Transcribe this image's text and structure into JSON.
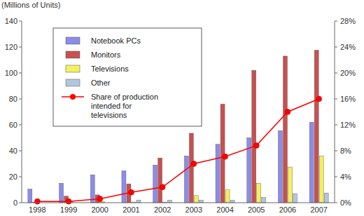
{
  "chart_data": {
    "type": "bar",
    "y_label": "(Millions of Units)",
    "categories": [
      "1998",
      "1999",
      "2000",
      "2001",
      "2002",
      "2003",
      "2004",
      "2005",
      "2006",
      "2007"
    ],
    "series": [
      {
        "name": "Notebook PCs",
        "type": "bar",
        "color": "#8c8ce8",
        "values": [
          10.5,
          15,
          21.5,
          24.5,
          29,
          36,
          45,
          50,
          55.5,
          62
        ]
      },
      {
        "name": "Monitors",
        "type": "bar",
        "color": "#c85050",
        "values": [
          0.5,
          5,
          6,
          14.5,
          34.5,
          53.5,
          76,
          102,
          113,
          117.5
        ]
      },
      {
        "name": "Televisions",
        "type": "bar",
        "color": "#f2f060",
        "values": [
          0,
          1,
          1,
          0.5,
          0.5,
          5.5,
          10,
          15,
          27.5,
          36
        ]
      },
      {
        "name": "Other",
        "type": "bar",
        "color": "#b4c6dc",
        "values": [
          0,
          0,
          0,
          2,
          2,
          2,
          2,
          4,
          7,
          7.5
        ]
      },
      {
        "name": "Share of production intended for televisions",
        "type": "line",
        "axis": "y2",
        "color": "#ff0000",
        "marker": "circle",
        "values": [
          0.2,
          0.2,
          0.6,
          1.6,
          2.4,
          6,
          7.1,
          8.8,
          14,
          16
        ]
      }
    ],
    "ylim": [
      0,
      140
    ],
    "yticks": [
      0,
      20,
      40,
      60,
      80,
      100,
      120,
      140
    ],
    "y2lim": [
      0,
      28
    ],
    "y2ticks": [
      {
        "value": 0,
        "label": "0%"
      },
      {
        "value": 4,
        "label": "4%"
      },
      {
        "value": 8,
        "label": "8%"
      },
      {
        "value": 12,
        "label": "12%"
      },
      {
        "value": 16,
        "label": "16%"
      },
      {
        "value": 20,
        "label": "20%"
      },
      {
        "value": 24,
        "label": "24%"
      },
      {
        "value": 28,
        "label": "28%"
      }
    ],
    "grid": false,
    "legend": "top-left"
  }
}
